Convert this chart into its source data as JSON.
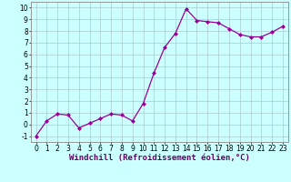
{
  "x": [
    0,
    1,
    2,
    3,
    4,
    5,
    6,
    7,
    8,
    9,
    10,
    11,
    12,
    13,
    14,
    15,
    16,
    17,
    18,
    19,
    20,
    21,
    22,
    23
  ],
  "y": [
    -1.0,
    0.3,
    0.9,
    0.8,
    -0.3,
    0.1,
    0.5,
    0.9,
    0.8,
    0.3,
    1.8,
    4.4,
    6.6,
    7.8,
    9.9,
    8.9,
    8.8,
    8.7,
    8.2,
    7.7,
    7.5,
    7.5,
    7.9,
    8.4
  ],
  "line_color": "#990099",
  "marker": "D",
  "marker_size": 2.0,
  "linewidth": 0.9,
  "bg_color": "#ccffff",
  "grid_color": "#aacccc",
  "xlabel": "Windchill (Refroidissement éolien,°C)",
  "xlabel_fontsize": 6.5,
  "tick_fontsize": 5.5,
  "xlim": [
    -0.5,
    23.5
  ],
  "ylim": [
    -1.5,
    10.5
  ],
  "yticks": [
    -1,
    0,
    1,
    2,
    3,
    4,
    5,
    6,
    7,
    8,
    9,
    10
  ],
  "xticks": [
    0,
    1,
    2,
    3,
    4,
    5,
    6,
    7,
    8,
    9,
    10,
    11,
    12,
    13,
    14,
    15,
    16,
    17,
    18,
    19,
    20,
    21,
    22,
    23
  ],
  "spine_color": "#888888",
  "label_color": "#660066"
}
